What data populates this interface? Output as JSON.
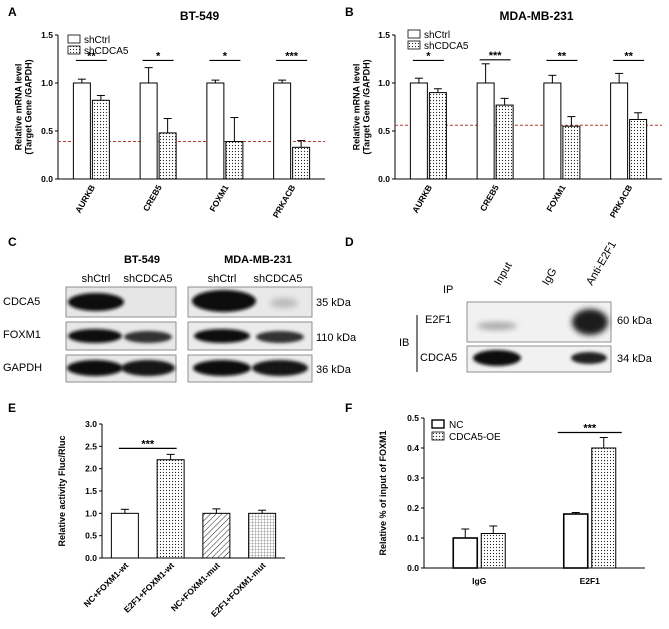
{
  "panel_labels": {
    "A": "A",
    "B": "B",
    "C": "C",
    "D": "D",
    "E": "E",
    "F": "F"
  },
  "chart_data": [
    {
      "panel": "A",
      "type": "bar",
      "title": "BT-549",
      "ylabel": "Relative mRNA level\n(Target Gene /GAPDH)",
      "ylim": [
        0,
        1.5
      ],
      "yticks": [
        "0.0",
        "0.5",
        "1.0",
        "1.5"
      ],
      "categories": [
        "AURKB",
        "CREB5",
        "FOXM1",
        "PRKACB"
      ],
      "series": [
        {
          "name": "shCtrl",
          "pattern": "open",
          "values": [
            1.0,
            1.0,
            1.0,
            1.0
          ],
          "err": [
            0.04,
            0.16,
            0.03,
            0.03
          ]
        },
        {
          "name": "shCDCA5",
          "pattern": "dots",
          "values": [
            0.82,
            0.48,
            0.39,
            0.33
          ],
          "err": [
            0.05,
            0.15,
            0.25,
            0.07
          ]
        }
      ],
      "significance": [
        "**",
        "*",
        "*",
        "***"
      ],
      "reference_line": 0.39,
      "legend": "top-left"
    },
    {
      "panel": "B",
      "type": "bar",
      "title": "MDA-MB-231",
      "ylabel": "Relative mRNA level\n(Target Gene /GAPDH)",
      "ylim": [
        0,
        1.5
      ],
      "yticks": [
        "0.0",
        "0.5",
        "1.0",
        "1.5"
      ],
      "categories": [
        "AURKB",
        "CREB5",
        "FOXM1",
        "PRKACB"
      ],
      "series": [
        {
          "name": "shCtrl",
          "pattern": "open",
          "values": [
            1.0,
            1.0,
            1.0,
            1.0
          ],
          "err": [
            0.05,
            0.2,
            0.08,
            0.1
          ]
        },
        {
          "name": "shCDCA5",
          "pattern": "dots",
          "values": [
            0.9,
            0.77,
            0.55,
            0.62
          ],
          "err": [
            0.04,
            0.07,
            0.1,
            0.07
          ]
        }
      ],
      "significance": [
        "*",
        "***",
        "**",
        "**"
      ],
      "reference_line": 0.56,
      "legend": "top-left"
    },
    {
      "panel": "E",
      "type": "bar",
      "title": "",
      "ylabel": "Relative activity Fluc/Rluc",
      "ylim": [
        0,
        3.0
      ],
      "yticks": [
        "0.0",
        "0.5",
        "1.0",
        "1.5",
        "2.0",
        "2.5",
        "3.0"
      ],
      "categories": [
        "NC+FOXM1-wt",
        "E2F1+FOXM1-wt",
        "NC+FOXM1-mut",
        "E2F1+FOXM1-mut"
      ],
      "patterns": [
        "open",
        "dots",
        "hatch",
        "grid"
      ],
      "values": [
        1.0,
        2.2,
        1.0,
        1.0
      ],
      "err": [
        0.09,
        0.12,
        0.1,
        0.07
      ],
      "significance": [
        {
          "between": [
            0,
            1
          ],
          "label": "***"
        }
      ]
    },
    {
      "panel": "F",
      "type": "bar",
      "title": "",
      "ylabel": "Relative % of input of FOXM1",
      "ylim": [
        0,
        0.5
      ],
      "yticks": [
        "0.0",
        "0.1",
        "0.2",
        "0.3",
        "0.4",
        "0.5"
      ],
      "categories": [
        "IgG",
        "E2F1"
      ],
      "series": [
        {
          "name": "NC",
          "pattern": "open",
          "values": [
            0.1,
            0.18
          ],
          "err": [
            0.03,
            0.005
          ]
        },
        {
          "name": "CDCA5-OE",
          "pattern": "dots",
          "values": [
            0.115,
            0.4
          ],
          "err": [
            0.025,
            0.035
          ]
        }
      ],
      "significance": [
        {
          "group": "E2F1",
          "label": "***"
        }
      ],
      "legend": "top-left"
    }
  ],
  "western_blot": {
    "cell_lines": [
      "BT-549",
      "MDA-MB-231"
    ],
    "conditions": [
      "shCtrl",
      "shCDCA5",
      "shCtrl",
      "shCDCA5"
    ],
    "proteins": [
      {
        "name": "CDCA5",
        "size": "35 kDa"
      },
      {
        "name": "FOXM1",
        "size": "110 kDa"
      },
      {
        "name": "GAPDH",
        "size": "36 kDa"
      }
    ]
  },
  "co_ip": {
    "ip_label": "IP",
    "ib_label": "IB",
    "lanes": [
      "Input",
      "IgG",
      "Anti-E2F1"
    ],
    "proteins": [
      {
        "name": "E2F1",
        "size": "60 kDa"
      },
      {
        "name": "CDCA5",
        "size": "34 kDa"
      }
    ]
  }
}
